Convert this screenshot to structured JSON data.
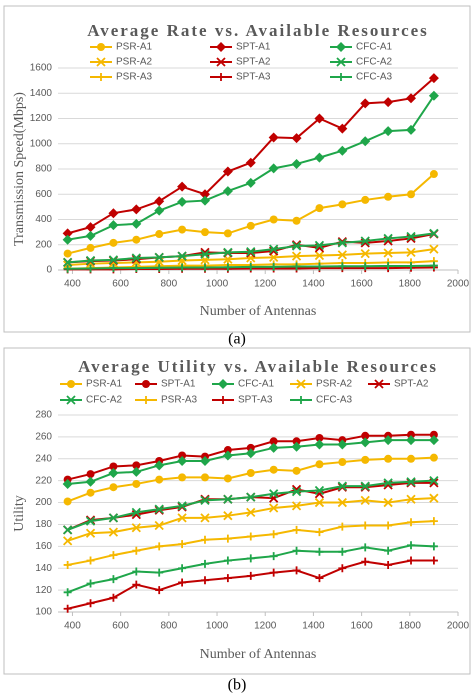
{
  "chart_data": [
    {
      "type": "line",
      "title": "Average Rate vs. Available Resources",
      "x_label": "Number of Antennas",
      "y_label": "Transmission Speed(Mbps)",
      "caption": "(a)",
      "x": [
        380,
        475,
        570,
        665,
        760,
        855,
        950,
        1045,
        1140,
        1235,
        1330,
        1425,
        1520,
        1615,
        1710,
        1805,
        1900
      ],
      "xlim": [
        340,
        2000
      ],
      "xticks": [
        400,
        600,
        800,
        1000,
        1200,
        1400,
        1600,
        1800,
        2000
      ],
      "ylim": [
        0,
        1600
      ],
      "yticks": [
        0,
        200,
        400,
        600,
        800,
        1000,
        1200,
        1400,
        1600
      ],
      "grid": true,
      "series": [
        {
          "name": "PSR-A1",
          "color": "#f5b800",
          "marker": "circle",
          "values": [
            130,
            175,
            215,
            240,
            285,
            320,
            300,
            290,
            350,
            400,
            390,
            490,
            520,
            555,
            580,
            600,
            760
          ]
        },
        {
          "name": "SPT-A1",
          "color": "#c00000",
          "marker": "diamond",
          "values": [
            290,
            340,
            450,
            480,
            545,
            660,
            600,
            780,
            850,
            1050,
            1045,
            1200,
            1120,
            1320,
            1330,
            1360,
            1520
          ]
        },
        {
          "name": "CFC-A1",
          "color": "#1fa64a",
          "marker": "diamond",
          "values": [
            240,
            270,
            355,
            365,
            470,
            540,
            550,
            625,
            690,
            805,
            840,
            890,
            945,
            1020,
            1100,
            1110,
            1380
          ]
        },
        {
          "name": "PSR-A2",
          "color": "#f5b800",
          "marker": "x",
          "values": [
            40,
            50,
            55,
            60,
            65,
            75,
            80,
            85,
            95,
            100,
            110,
            115,
            120,
            130,
            135,
            140,
            165
          ]
        },
        {
          "name": "SPT-A2",
          "color": "#c00000",
          "marker": "x",
          "values": [
            60,
            70,
            75,
            85,
            100,
            110,
            140,
            135,
            135,
            150,
            200,
            175,
            225,
            215,
            230,
            250,
            285
          ]
        },
        {
          "name": "CFC-A2",
          "color": "#1fa64a",
          "marker": "x",
          "values": [
            60,
            75,
            80,
            95,
            100,
            110,
            125,
            140,
            145,
            165,
            190,
            195,
            215,
            230,
            250,
            265,
            290
          ]
        },
        {
          "name": "PSR-A3",
          "color": "#f5b800",
          "marker": "plus",
          "values": [
            10,
            15,
            20,
            25,
            30,
            35,
            35,
            40,
            40,
            45,
            45,
            50,
            55,
            55,
            60,
            60,
            70
          ]
        },
        {
          "name": "SPT-A3",
          "color": "#c00000",
          "marker": "plus",
          "values": [
            5,
            5,
            5,
            8,
            8,
            10,
            10,
            10,
            12,
            12,
            12,
            15,
            15,
            15,
            15,
            18,
            20
          ]
        },
        {
          "name": "CFC-A3",
          "color": "#1fa64a",
          "marker": "plus",
          "values": [
            10,
            12,
            15,
            15,
            18,
            20,
            20,
            22,
            25,
            25,
            28,
            28,
            30,
            30,
            32,
            32,
            35
          ]
        }
      ]
    },
    {
      "type": "line",
      "title": "Average Utility vs. Available Resources",
      "x_label": "Number of Antennas",
      "y_label": "Utility",
      "caption": "(b)",
      "x": [
        380,
        475,
        570,
        665,
        760,
        855,
        950,
        1045,
        1140,
        1235,
        1330,
        1425,
        1520,
        1615,
        1710,
        1805,
        1900
      ],
      "xlim": [
        340,
        2000
      ],
      "xticks": [
        400,
        600,
        800,
        1000,
        1200,
        1400,
        1600,
        1800,
        2000
      ],
      "ylim": [
        100,
        280
      ],
      "yticks": [
        100,
        120,
        140,
        160,
        180,
        200,
        220,
        240,
        260,
        280
      ],
      "grid": true,
      "series": [
        {
          "name": "PSR-A1",
          "color": "#f5b800",
          "marker": "circle",
          "values": [
            201,
            209,
            214,
            217,
            221,
            223,
            223,
            222,
            227,
            230,
            229,
            235,
            237,
            239,
            240,
            240,
            241
          ]
        },
        {
          "name": "SPT-A1",
          "color": "#c00000",
          "marker": "circle",
          "values": [
            221,
            226,
            233,
            234,
            238,
            243,
            242,
            248,
            250,
            256,
            256,
            259,
            257,
            261,
            261,
            262,
            262
          ]
        },
        {
          "name": "CFC-A1",
          "color": "#1fa64a",
          "marker": "diamond",
          "values": [
            217,
            219,
            227,
            228,
            234,
            238,
            238,
            243,
            245,
            250,
            251,
            253,
            253,
            255,
            257,
            257,
            257
          ]
        },
        {
          "name": "PSR-A2",
          "color": "#f5b800",
          "marker": "x",
          "values": [
            165,
            172,
            173,
            177,
            179,
            186,
            186,
            188,
            191,
            195,
            197,
            200,
            200,
            202,
            200,
            203,
            204
          ]
        },
        {
          "name": "SPT-A2",
          "color": "#c00000",
          "marker": "x",
          "values": [
            175,
            184,
            186,
            189,
            193,
            196,
            203,
            203,
            205,
            204,
            212,
            208,
            214,
            214,
            216,
            218,
            218
          ]
        },
        {
          "name": "CFC-A2",
          "color": "#1fa64a",
          "marker": "x",
          "values": [
            175,
            183,
            186,
            191,
            194,
            197,
            202,
            203,
            205,
            208,
            210,
            211,
            215,
            215,
            218,
            219,
            220
          ]
        },
        {
          "name": "PSR-A3",
          "color": "#f5b800",
          "marker": "plus",
          "values": [
            143,
            147,
            152,
            156,
            160,
            162,
            166,
            167,
            169,
            171,
            175,
            173,
            178,
            179,
            179,
            182,
            183
          ]
        },
        {
          "name": "SPT-A3",
          "color": "#c00000",
          "marker": "plus",
          "values": [
            103,
            108,
            113,
            125,
            120,
            127,
            129,
            131,
            133,
            136,
            138,
            131,
            140,
            146,
            143,
            147,
            147
          ]
        },
        {
          "name": "CFC-A3",
          "color": "#1fa64a",
          "marker": "plus",
          "values": [
            118,
            126,
            130,
            137,
            136,
            140,
            144,
            147,
            149,
            151,
            156,
            155,
            155,
            159,
            156,
            161,
            160
          ]
        }
      ]
    }
  ]
}
